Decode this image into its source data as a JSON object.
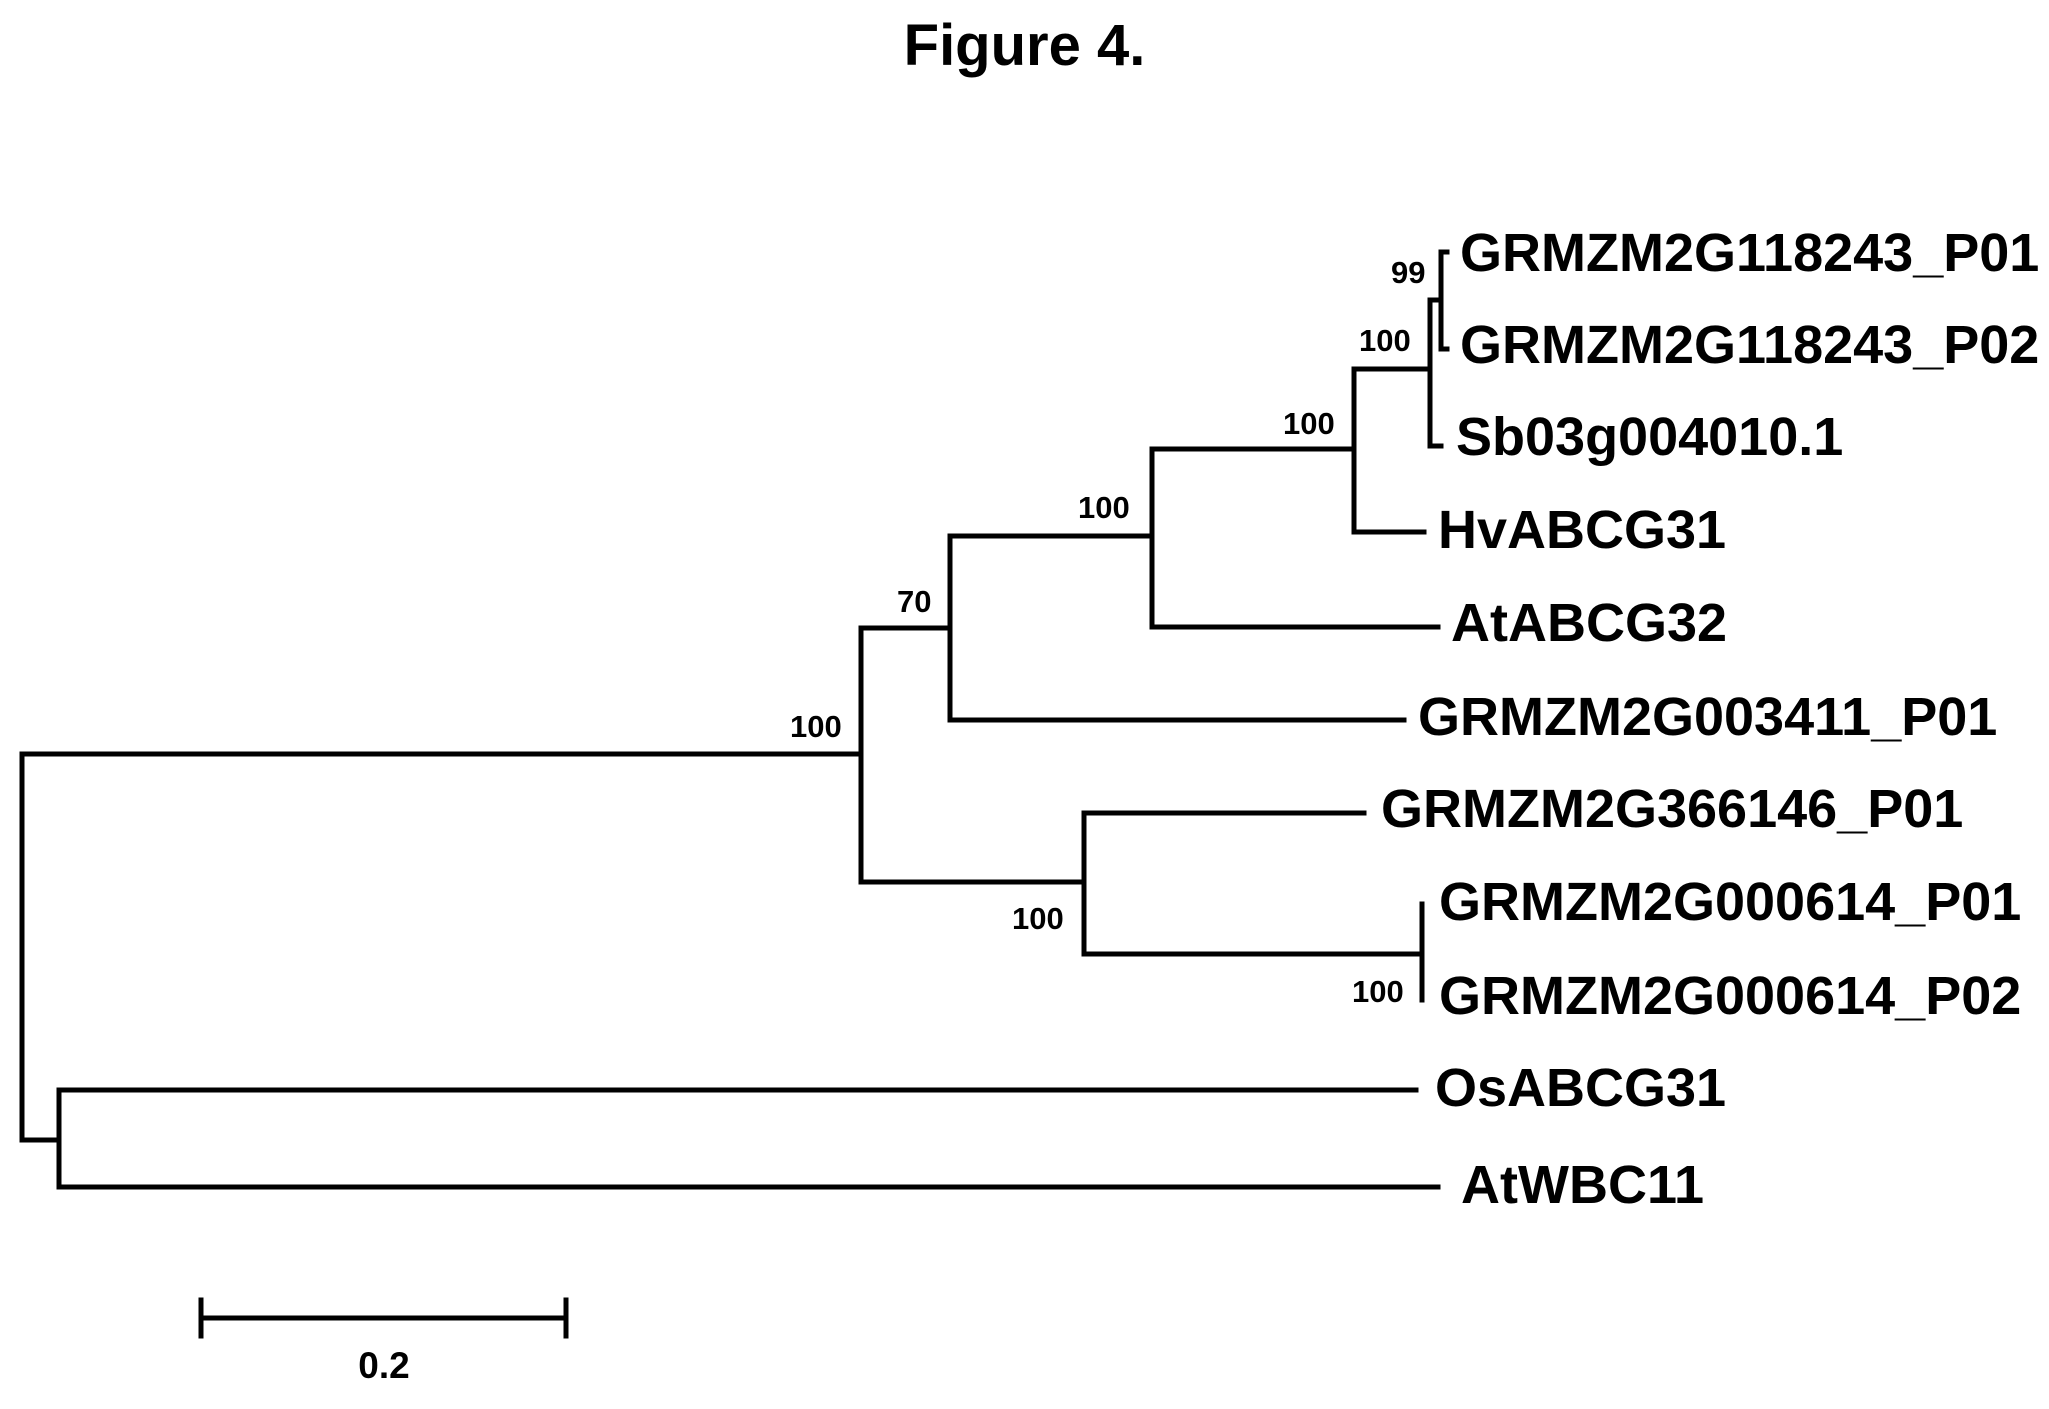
{
  "figure": {
    "title": "Figure 4."
  },
  "tree": {
    "leaves": [
      "GRMZM2G118243_P01",
      "GRMZM2G118243_P02",
      "Sb03g004010.1",
      "HvABCG31",
      "AtABCG32",
      "GRMZM2G003411_P01",
      "GRMZM2G366146_P01",
      "GRMZM2G000614_P01",
      "GRMZM2G000614_P02",
      "OsABCG31",
      "AtWBC11"
    ],
    "bootstrap_values": [
      "99",
      "100",
      "100",
      "100",
      "70",
      "100",
      "100",
      "100"
    ],
    "scale_bar_label": "0.2"
  }
}
